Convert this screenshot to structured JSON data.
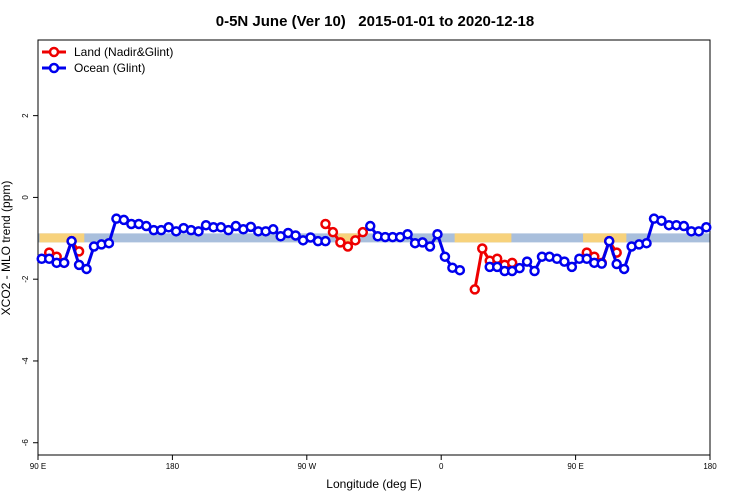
{
  "chart_data": {
    "type": "line",
    "title": "0-5N June (Ver 10)   2015-01-01 to 2020-12-18",
    "x_label": "Longitude (deg E)",
    "y_label": "XCO2 - MLO trend (ppm)",
    "xlim": [
      90,
      540
    ],
    "ylim": [
      -6.3,
      3.85
    ],
    "xticks": [
      {
        "value": 90,
        "label": "90 E"
      },
      180,
      {
        "value": 270,
        "label": "90 W"
      },
      {
        "value": 360,
        "label": "0"
      },
      {
        "value": 450,
        "label": "90 E"
      },
      {
        "value": 540,
        "label": "180"
      }
    ],
    "yticks": [
      2,
      0,
      -2,
      -4,
      -6
    ],
    "legend": "top-left",
    "reference_band": {
      "range": [
        -1.1,
        -0.88
      ],
      "color": "#a9bfdc"
    },
    "land_spans": {
      "color": "#f7d27c",
      "ranges": [
        [
          91,
          121
        ],
        [
          291,
          304
        ],
        [
          369,
          407
        ],
        [
          455,
          484
        ]
      ]
    },
    "x": [
      92.5,
      97.5,
      102.5,
      107.5,
      112.5,
      117.5,
      122.5,
      127.5,
      132.5,
      137.5,
      142.5,
      147.5,
      152.5,
      157.5,
      162.5,
      167.5,
      172.5,
      177.5,
      182.5,
      187.5,
      192.5,
      197.5,
      202.5,
      207.5,
      212.5,
      217.5,
      222.5,
      227.5,
      232.5,
      237.5,
      242.5,
      247.5,
      252.5,
      257.5,
      262.5,
      267.5,
      272.5,
      277.5,
      282.5,
      287.5,
      292.5,
      297.5,
      302.5,
      307.5,
      312.5,
      317.5,
      322.5,
      327.5,
      332.5,
      337.5,
      342.5,
      347.5,
      352.5,
      357.5,
      362.5,
      367.5,
      372.5,
      377.5,
      382.5,
      387.5,
      392.5,
      397.5,
      402.5,
      407.5,
      412.5,
      417.5,
      422.5,
      427.5,
      432.5,
      437.5,
      442.5,
      447.5,
      452.5,
      457.5,
      462.5,
      467.5,
      472.5,
      477.5,
      482.5,
      487.5,
      492.5,
      497.5,
      502.5,
      507.5,
      512.5,
      517.5,
      522.5,
      527.5,
      532.5,
      537.5
    ],
    "series": [
      {
        "name": "Land (Nadir&Glint)",
        "color": "#ee0000",
        "values": [
          null,
          -1.35,
          -1.45,
          -1.6,
          -1.07,
          -1.32,
          null,
          null,
          null,
          null,
          null,
          null,
          null,
          null,
          null,
          null,
          null,
          null,
          null,
          null,
          null,
          null,
          null,
          null,
          null,
          null,
          null,
          null,
          null,
          null,
          null,
          null,
          null,
          null,
          null,
          null,
          null,
          null,
          -0.65,
          -0.85,
          -1.1,
          -1.2,
          -1.05,
          -0.85,
          null,
          null,
          null,
          null,
          null,
          null,
          null,
          null,
          null,
          null,
          null,
          null,
          null,
          null,
          -2.25,
          -1.25,
          -1.55,
          -1.5,
          -1.65,
          -1.6,
          null,
          null,
          null,
          null,
          null,
          null,
          null,
          null,
          null,
          -1.35,
          -1.45,
          -1.6,
          -1.07,
          -1.35,
          null,
          null,
          null,
          null,
          null,
          null,
          null,
          null,
          null,
          null,
          null,
          null
        ]
      },
      {
        "name": "Ocean (Glint)",
        "color": "#0000ee",
        "values": [
          -1.5,
          -1.5,
          -1.6,
          -1.6,
          -1.07,
          -1.65,
          -1.75,
          -1.2,
          -1.15,
          -1.12,
          -0.52,
          -0.55,
          -0.65,
          -0.65,
          -0.7,
          -0.8,
          -0.8,
          -0.73,
          -0.83,
          -0.75,
          -0.8,
          -0.83,
          -0.68,
          -0.73,
          -0.73,
          -0.8,
          -0.7,
          -0.78,
          -0.72,
          -0.83,
          -0.83,
          -0.78,
          -0.95,
          -0.87,
          -0.93,
          -1.05,
          -0.98,
          -1.07,
          -1.07,
          null,
          null,
          null,
          null,
          null,
          -0.7,
          -0.95,
          -0.97,
          -0.97,
          -0.97,
          -0.9,
          -1.12,
          -1.1,
          -1.2,
          -0.9,
          -1.45,
          -1.72,
          -1.78,
          null,
          null,
          null,
          -1.7,
          -1.7,
          -1.8,
          -1.8,
          -1.73,
          -1.57,
          -1.8,
          -1.45,
          -1.45,
          -1.5,
          -1.57,
          -1.7,
          -1.5,
          -1.5,
          -1.6,
          -1.62,
          -1.07,
          -1.63,
          -1.75,
          -1.2,
          -1.15,
          -1.12,
          -0.52,
          -0.57,
          -0.68,
          -0.68,
          -0.7,
          -0.83,
          -0.83,
          -0.73
        ]
      }
    ]
  }
}
